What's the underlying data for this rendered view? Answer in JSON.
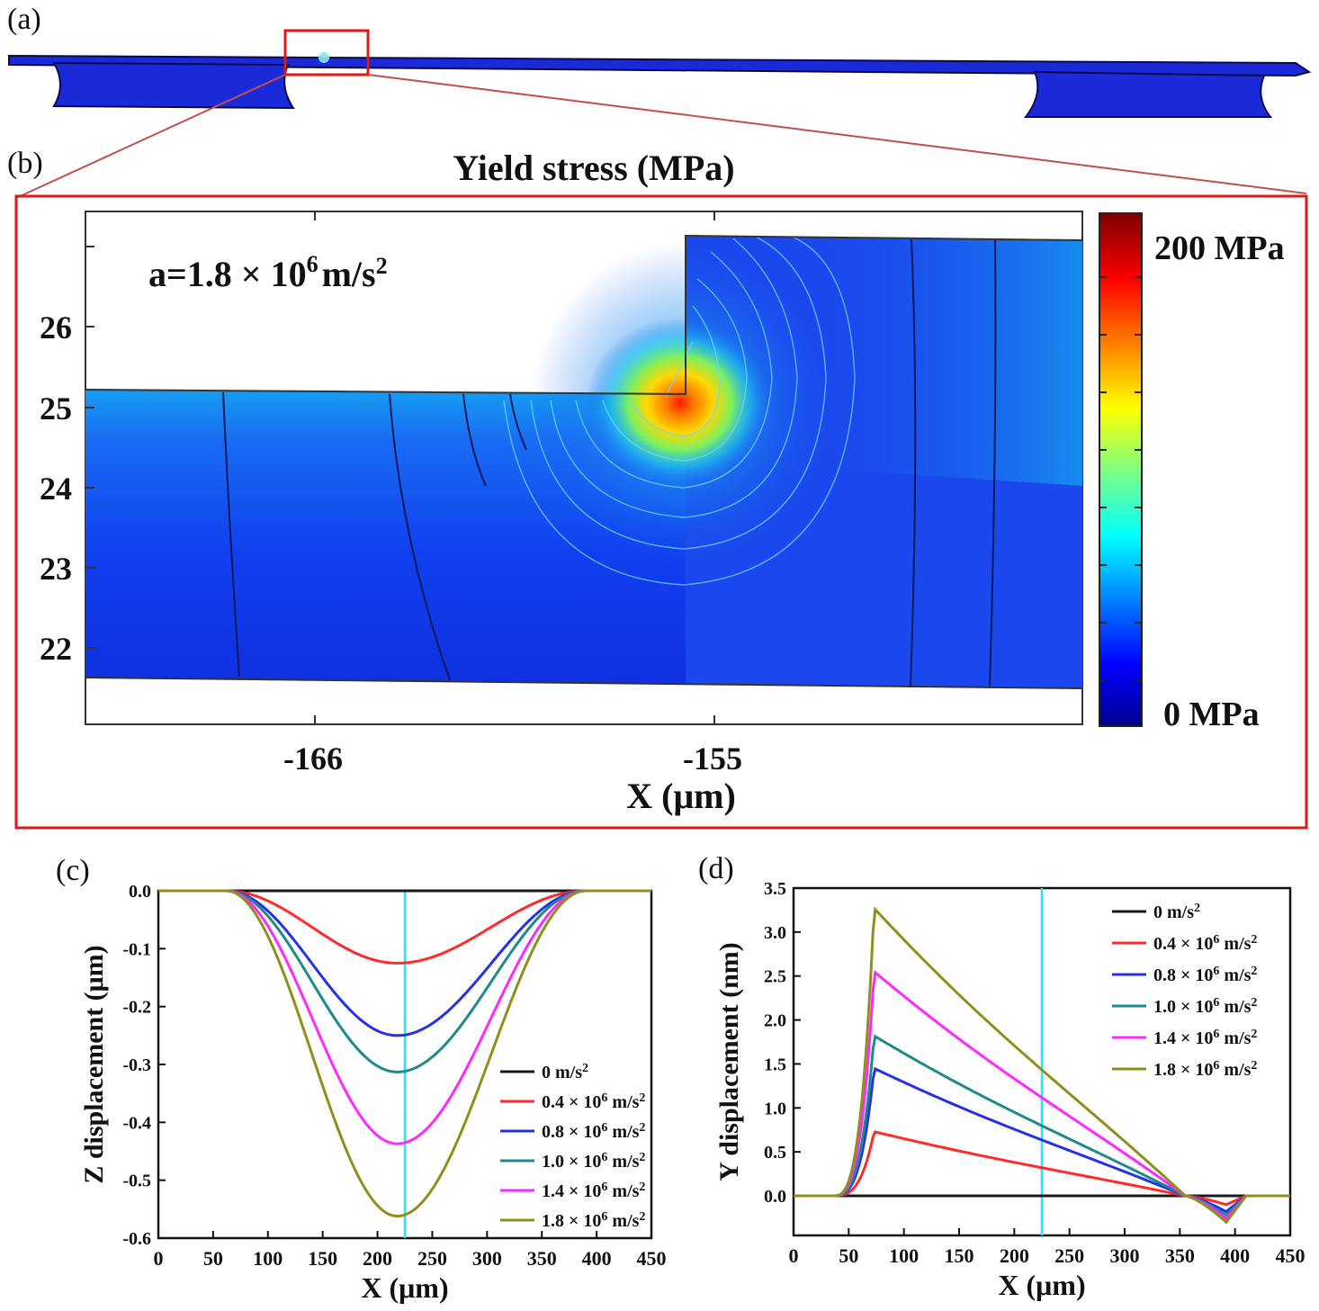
{
  "figure": {
    "panel_labels": {
      "a": "(a)",
      "b": "(b)",
      "c": "(c)",
      "d": "(d)"
    }
  },
  "panel_b": {
    "title": "Yield stress (MPa)",
    "annotation": {
      "prefix": "a=1.8 × 10",
      "exp": "6",
      "unit": "m/s",
      "unit_exp": "2"
    },
    "x_label": "X (μm)",
    "x_ticks": [
      "-166",
      "-155"
    ],
    "y_ticks": [
      "26",
      "25",
      "24",
      "23",
      "22"
    ],
    "colorbar": {
      "max_label": "200 MPa",
      "min_label": "0 MPa"
    }
  },
  "chart_data": [
    {
      "id": "c",
      "type": "line",
      "title": "",
      "xlabel": "X (μm)",
      "ylabel": "Z displacement (μm)",
      "xlim": [
        0,
        450
      ],
      "ylim": [
        -0.6,
        0.0
      ],
      "x_ticks": [
        "0",
        "50",
        "100",
        "150",
        "200",
        "250",
        "300",
        "350",
        "400",
        "450"
      ],
      "y_ticks": [
        "0.0",
        "-0.1",
        "-0.2",
        "-0.3",
        "-0.4",
        "-0.5",
        "-0.6"
      ],
      "vline_x": 225,
      "legend_position": "bottom-right",
      "series": [
        {
          "name": "0 m/s²",
          "base": "0 m/s",
          "exp": "2",
          "color": "#1a1a1a",
          "min": 0.0
        },
        {
          "name": "0.4 × 10⁶ m/s²",
          "base": "0.4 × 10",
          "exp": "6",
          "unit": " m/s",
          "unit_exp": "2",
          "color": "#ff2a2a",
          "min": -0.125
        },
        {
          "name": "0.8 × 10⁶ m/s²",
          "base": "0.8 × 10",
          "exp": "6",
          "unit": " m/s",
          "unit_exp": "2",
          "color": "#2431e8",
          "min": -0.25
        },
        {
          "name": "1.0 × 10⁶ m/s²",
          "base": "1.0 × 10",
          "exp": "6",
          "unit": " m/s",
          "unit_exp": "2",
          "color": "#1e8a8a",
          "min": -0.313
        },
        {
          "name": "1.4 × 10⁶ m/s²",
          "base": "1.4 × 10",
          "exp": "6",
          "unit": " m/s",
          "unit_exp": "2",
          "color": "#ff28ff",
          "min": -0.437
        },
        {
          "name": "1.8 × 10⁶ m/s²",
          "base": "1.8 × 10",
          "exp": "6",
          "unit": " m/s",
          "unit_exp": "2",
          "color": "#8f8f1e",
          "min": -0.562
        }
      ]
    },
    {
      "id": "d",
      "type": "line",
      "title": "",
      "xlabel": "X (μm)",
      "ylabel": "Y displacement (nm)",
      "xlim": [
        0,
        450
      ],
      "ylim": [
        -0.45,
        3.5
      ],
      "x_ticks": [
        "0",
        "50",
        "100",
        "150",
        "200",
        "250",
        "300",
        "350",
        "400",
        "450"
      ],
      "y_ticks": [
        "3.5",
        "3.0",
        "2.5",
        "2.0",
        "1.5",
        "1.0",
        "0.5",
        "0.0"
      ],
      "vline_x": 225,
      "legend_position": "top-right",
      "series": [
        {
          "name": "0 m/s²",
          "color": "#1a1a1a",
          "peak": 0.0,
          "neg": 0.0
        },
        {
          "name": "0.4 × 10⁶ m/s²",
          "color": "#ff2a2a",
          "peak": 0.73,
          "neg": -0.1
        },
        {
          "name": "0.8 × 10⁶ m/s²",
          "color": "#2431e8",
          "peak": 1.45,
          "neg": -0.18
        },
        {
          "name": "1.0 × 10⁶ m/s²",
          "color": "#1e8a8a",
          "peak": 1.82,
          "neg": -0.22
        },
        {
          "name": "1.4 × 10⁶ m/s²",
          "color": "#ff28ff",
          "peak": 2.55,
          "neg": -0.26
        },
        {
          "name": "1.8 × 10⁶ m/s²",
          "color": "#8f8f1e",
          "peak": 3.27,
          "neg": -0.3
        }
      ]
    }
  ]
}
